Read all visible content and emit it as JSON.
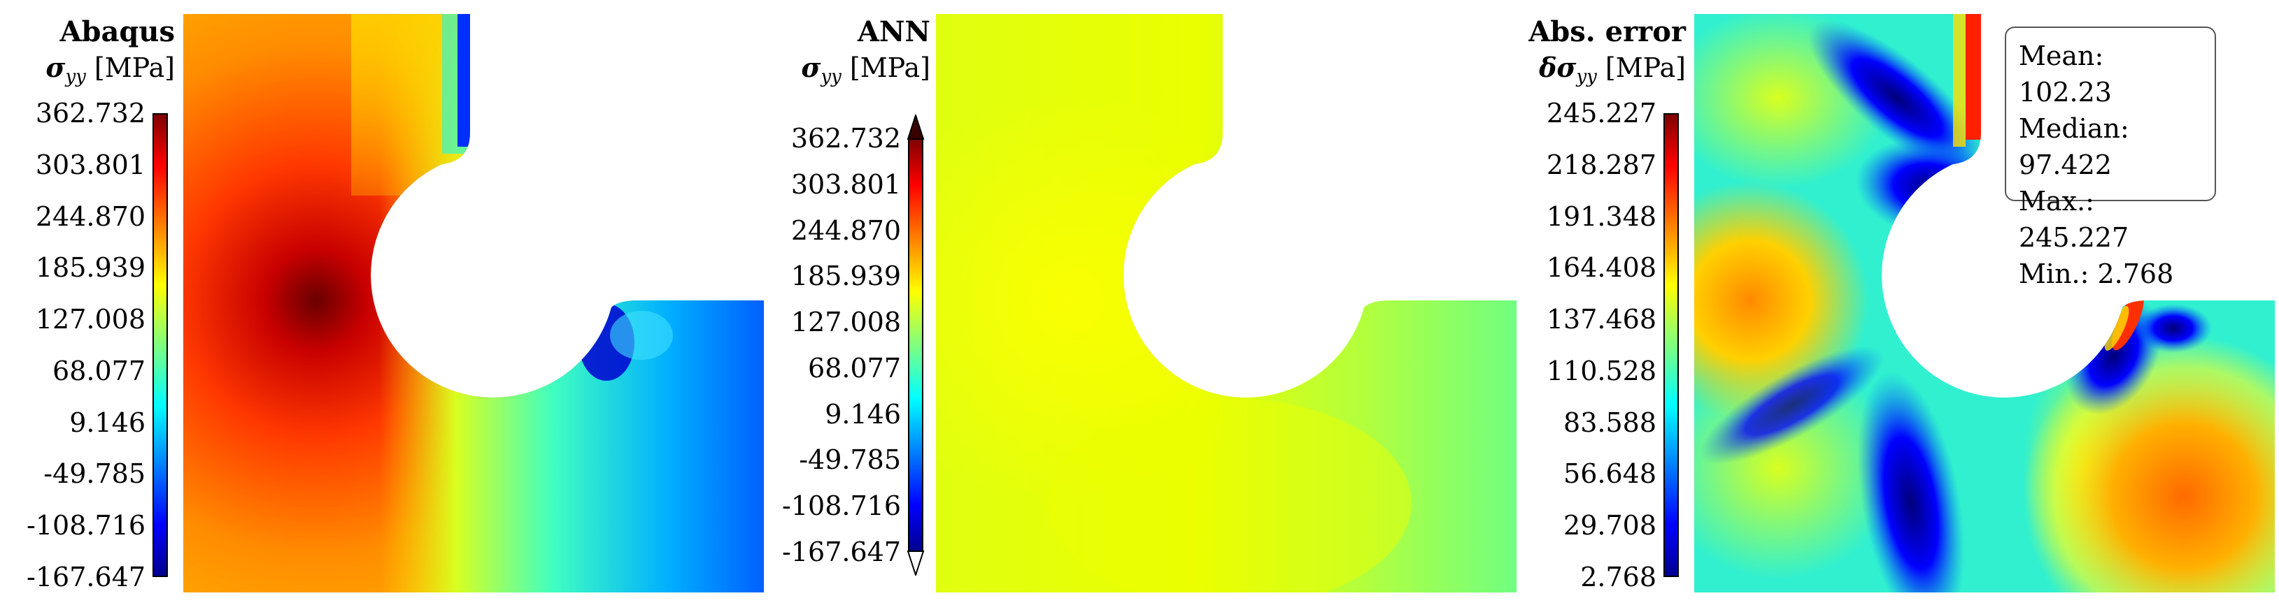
{
  "panels": [
    {
      "title": "Abaqus",
      "symbol": "σ",
      "subscript": "yy",
      "unit": "[MPa]",
      "ticks": [
        "362.732",
        "303.801",
        "244.870",
        "185.939",
        "127.008",
        "68.077",
        "9.146",
        "-49.785",
        "-108.716",
        "-167.647"
      ],
      "colorbar_extend": "none"
    },
    {
      "title": "ANN",
      "symbol": "σ",
      "subscript": "yy",
      "unit": "[MPa]",
      "ticks": [
        "362.732",
        "303.801",
        "244.870",
        "185.939",
        "127.008",
        "68.077",
        "9.146",
        "-49.785",
        "-108.716",
        "-167.647"
      ],
      "colorbar_extend": "both"
    },
    {
      "title": "Abs. error",
      "symbol": "δσ",
      "subscript": "yy",
      "unit": "[MPa]",
      "ticks": [
        "245.227",
        "218.287",
        "191.348",
        "164.408",
        "137.468",
        "110.528",
        "83.588",
        "56.648",
        "29.708",
        "2.768"
      ],
      "colorbar_extend": "none"
    }
  ],
  "stats": {
    "mean": "Mean: 102.23",
    "median": "Median: 97.422",
    "max": "Max.: 245.227",
    "min": "Min.: 2.768"
  },
  "colormap": "jet"
}
